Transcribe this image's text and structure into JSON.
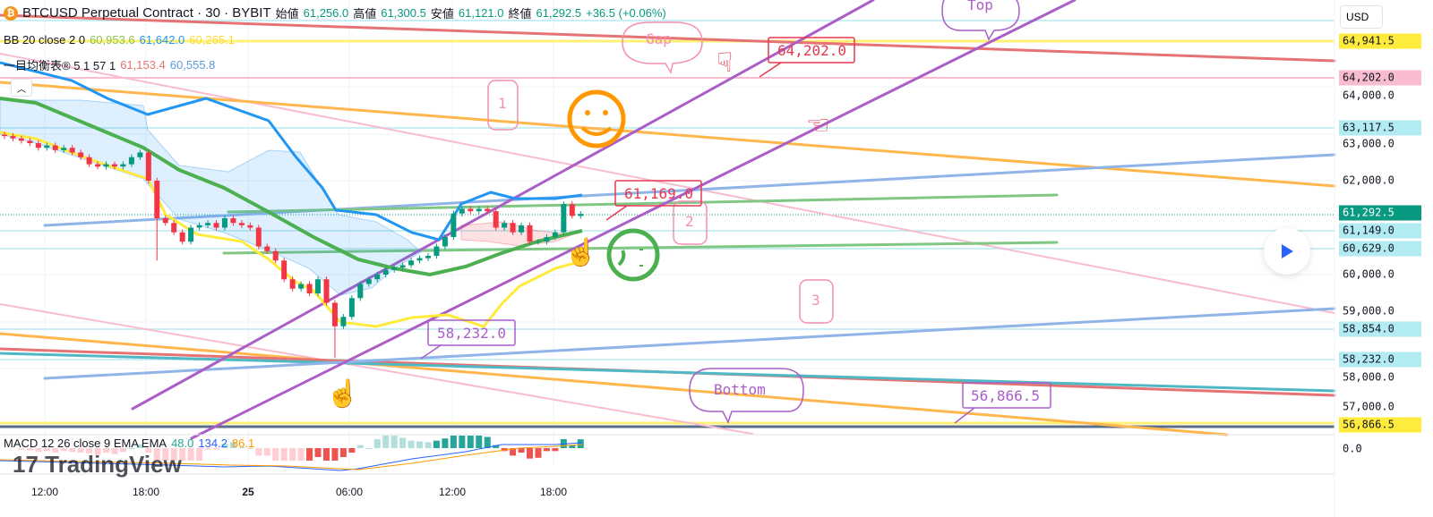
{
  "header": {
    "coin_icon": "bitcoin-icon",
    "title": "BTCUSD Perpetual Contract · 30 · BYBIT",
    "open_label": "始値",
    "open": "61,256.0",
    "high_label": "高値",
    "high": "61,300.5",
    "low_label": "安値",
    "low": "61,121.0",
    "close_label": "終値",
    "close": "61,292.5",
    "change": "+36.5 (+0.06%)"
  },
  "indicators": {
    "bb": {
      "label": "BB 20 close 2 0",
      "basis": "60,953.6",
      "upper": "61,642.0",
      "lower": "60,265.1",
      "colors": {
        "basis": "#4caf50",
        "upper": "#2196f3",
        "lower": "#ffeb3b"
      }
    },
    "ichimoku": {
      "label": "一目均衡表® 5 1 57 1",
      "v1": "61,153.4",
      "v2": "60,555.8"
    },
    "macd": {
      "label": "MACD 12 26 close 9 EMA EMA",
      "hist": "48.0",
      "macd": "134.2",
      "signal": "86.1"
    }
  },
  "currency": "USD",
  "price_axis": {
    "ticks": [
      "64,000.0",
      "63,000.0",
      "62,000.0",
      "60,000.0",
      "59,000.0",
      "58,000.0",
      "57,000.0"
    ],
    "macd_zero": "0.0",
    "labels": [
      {
        "text": "64,941.5",
        "bg": "#ffeb3b",
        "color": "#131722"
      },
      {
        "text": "64,202.0",
        "bg": "#f8bbd0",
        "color": "#131722"
      },
      {
        "text": "63,117.5",
        "bg": "#b2ebf2",
        "color": "#131722"
      },
      {
        "text": "61,292.5",
        "bg": "#089981",
        "color": "#ffffff"
      },
      {
        "text": "61,149.0",
        "bg": "#b2ebf2",
        "color": "#131722"
      },
      {
        "text": "60,629.0",
        "bg": "#b2ebf2",
        "color": "#131722"
      },
      {
        "text": "58,854.0",
        "bg": "#b2ebf2",
        "color": "#131722"
      },
      {
        "text": "58,232.0",
        "bg": "#b2ebf2",
        "color": "#131722"
      },
      {
        "text": "56,866.5",
        "bg": "#ffeb3b",
        "color": "#131722"
      }
    ]
  },
  "time_axis": [
    "12:00",
    "18:00",
    "25",
    "06:00",
    "12:00",
    "18:00"
  ],
  "annotations": {
    "gap": "Gap",
    "top": "Top",
    "bottom": "Bottom",
    "wave1": "1",
    "wave2": "2",
    "wave3": "3",
    "callout_high": "64,202.0",
    "callout_mid": "61,169.0",
    "callout_low": "58,232.0",
    "callout_bottom": "56,866.5"
  },
  "watermark": "TradingView",
  "chart_data": {
    "type": "candlestick",
    "symbol": "BTCUSD",
    "interval": "30",
    "x_ticks": [
      "12:00",
      "18:00",
      "25",
      "06:00",
      "12:00",
      "18:00"
    ],
    "ylim": [
      56700,
      65300
    ],
    "up_color": "#089981",
    "down_color": "#f23645",
    "closes": [
      62950,
      62900,
      62850,
      62800,
      62700,
      62750,
      62650,
      62700,
      62600,
      62500,
      62350,
      62300,
      62350,
      62300,
      62350,
      62500,
      62600,
      62000,
      61200,
      61100,
      60900,
      60700,
      61000,
      61050,
      61100,
      61000,
      61200,
      61100,
      61050,
      61000,
      60600,
      60500,
      60300,
      59900,
      59700,
      59800,
      59600,
      59900,
      59400,
      58900,
      59100,
      59500,
      59800,
      59900,
      60000,
      60100,
      60150,
      60200,
      60300,
      60350,
      60400,
      60600,
      60800,
      61300,
      61400,
      61350,
      61400,
      61350,
      61000,
      61100,
      60900,
      61050,
      60700,
      60700,
      60800,
      60900,
      61500,
      61250,
      61292.5
    ],
    "first_open": 62980,
    "period_low": 58232.0,
    "last_close": 61292.5
  }
}
